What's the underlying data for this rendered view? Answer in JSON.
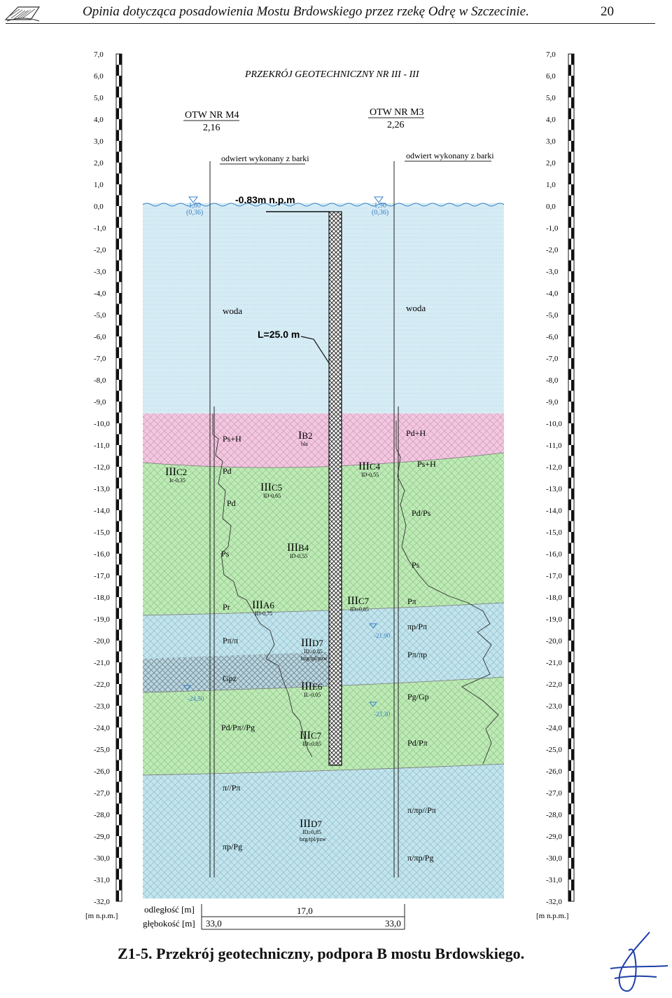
{
  "header": {
    "title": "Opinia dotycząca posadowienia Mostu Brdowskiego przez rzekę Odrę w Szczecinie.",
    "page_number": "20"
  },
  "caption": "Z1-5. Przekrój geotechniczny, podpora B mostu Brdowskiego.",
  "section_title": "PRZEKRÓJ GEOTECHNICZNY NR III - III",
  "scale_ticks": [
    "7,0",
    "6,0",
    "5,0",
    "4,0",
    "3,0",
    "2,0",
    "1,0",
    "0,0",
    "-1,0",
    "-2,0",
    "-3,0",
    "-4,0",
    "-5,0",
    "-6,0",
    "-7,0",
    "-8,0",
    "-9,0",
    "-10,0",
    "-11,0",
    "-12,0",
    "-13,0",
    "-14,0",
    "-15,0",
    "-16,0",
    "-17,0",
    "-18,0",
    "-19,0",
    "-20,0",
    "-21,0",
    "-22,0",
    "-23,0",
    "-24,0",
    "-25,0",
    "-26,0",
    "-27,0",
    "-28,0",
    "-29,0",
    "-30,0",
    "-31,0",
    "-32,0"
  ],
  "scale_unit": "[m n.p.m.]",
  "boreholes": [
    {
      "name": "OTW NR M4",
      "elevation": "2,16",
      "note": "odwiert wykonany z barki",
      "water_level": "-1,80",
      "water_level_sub": "(0,36)",
      "depth": "33,0"
    },
    {
      "name": "OTW NR M3",
      "elevation": "2,26",
      "note": "odwiert wykonany z barki",
      "water_level": "-1,90",
      "water_level_sub": "(0,36)",
      "depth": "33,0"
    }
  ],
  "pile": {
    "top_label": "-0.83m n.p.m",
    "length_label": "L=25.0 m"
  },
  "water_label": "woda",
  "layer_labels": [
    {
      "id": "IB2",
      "roman": "I",
      "code": "B2",
      "sub": "bla"
    },
    {
      "id": "IIIC2",
      "roman": "III",
      "code": "C2",
      "sub": "Ic-0,35"
    },
    {
      "id": "IIIC5",
      "roman": "III",
      "code": "C5",
      "sub": "ID-0,65"
    },
    {
      "id": "IIIC4",
      "roman": "III",
      "code": "C4",
      "sub": "ID-0,55"
    },
    {
      "id": "IIIB4",
      "roman": "III",
      "code": "B4",
      "sub": "ID-0,55"
    },
    {
      "id": "IIIA6",
      "roman": "III",
      "code": "A6",
      "sub": "ID-0,75"
    },
    {
      "id": "IIIC7a",
      "roman": "III",
      "code": "C7",
      "sub": "ID≥0,85"
    },
    {
      "id": "IIID7a",
      "roman": "III",
      "code": "D7",
      "sub": "ID≥0,85",
      "sub2": "bzg/tpl/pzw"
    },
    {
      "id": "IIIE6",
      "roman": "III",
      "code": "E6",
      "sub": "IL-0,05"
    },
    {
      "id": "IIIC7b",
      "roman": "III",
      "code": "C7",
      "sub": "ID≥0,85"
    },
    {
      "id": "IIID7b",
      "roman": "III",
      "code": "D7",
      "sub": "ID≥0,85",
      "sub2": "bzg/tpl/pzw"
    }
  ],
  "soil_left": [
    "Ps+H",
    "Pd",
    "Pd",
    "Ps",
    "Pr",
    "Pπ/π",
    "Gpz",
    "Pd/Pπ//Pg",
    "π//Pπ",
    "πp/Pg"
  ],
  "soil_right": [
    "Pd+H",
    "Ps+H",
    "Pd/Ps",
    "Ps",
    "Pπ",
    "πp/Pπ",
    "Pπ/πp",
    "Pg/Gp",
    "Pd/Pπ",
    "π/πp//Pπ",
    "π/πp/Pg"
  ],
  "groundwater": [
    "-24,50",
    "-21,90",
    "-23,30"
  ],
  "bottom_table": {
    "distance_label": "odległość [m]",
    "depth_label": "głębokość [m]",
    "distance": "17,0"
  },
  "colors": {
    "water": "#cfe8f3",
    "pink": "#efc0dc",
    "green": "#b8e6b0",
    "blue": "#bfe2ea",
    "pile": "#444444",
    "water_line": "#3a7fc4"
  }
}
